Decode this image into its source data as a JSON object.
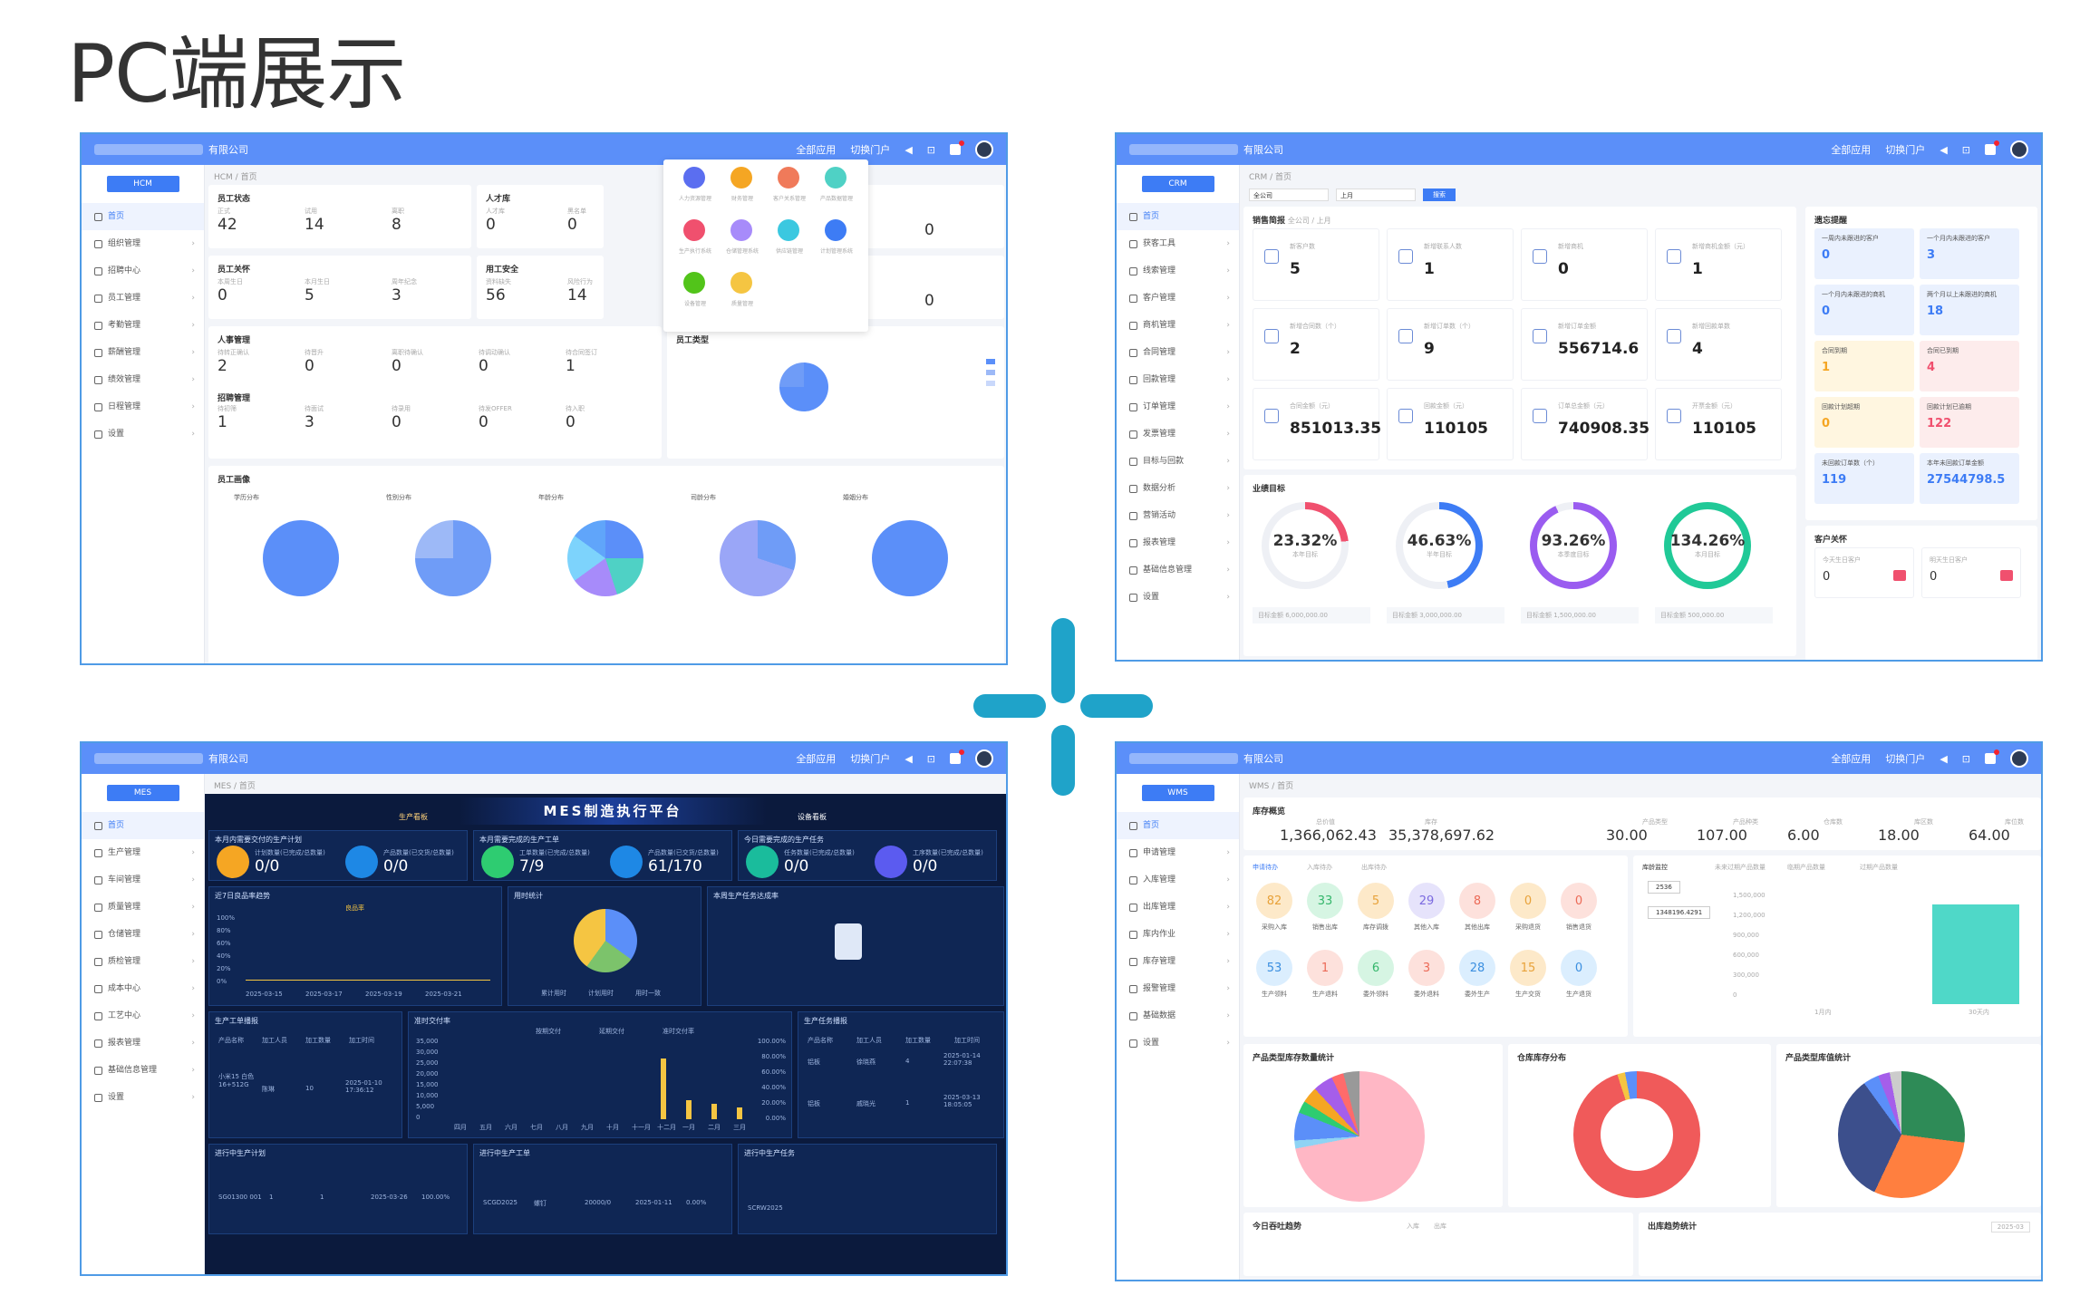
{
  "page_title": "PC端展示",
  "common": {
    "company_suffix_a": "有限公司",
    "company_suffix_b": "有限公司",
    "all_apps": "全部应用",
    "switch_portal": "切换门户",
    "home": "首页"
  },
  "hcm": {
    "module": "HCM",
    "breadcrumb": "HCM / 首页",
    "sidebar": [
      "首页",
      "组织管理",
      "招聘中心",
      "员工管理",
      "考勤管理",
      "薪酬管理",
      "绩效管理",
      "日程管理",
      "设置"
    ],
    "employee_status": {
      "title": "员工状态",
      "items": [
        {
          "label": "正式",
          "value": "42"
        },
        {
          "label": "试用",
          "value": "14"
        },
        {
          "label": "离职",
          "value": "8"
        }
      ]
    },
    "talent_pool": {
      "title": "人才库",
      "items": [
        {
          "label": "人才库",
          "value": "0"
        },
        {
          "label": "黑名单",
          "value": "0"
        }
      ]
    },
    "care": {
      "title": "员工关怀",
      "items": [
        {
          "label": "本周生日",
          "value": "0"
        },
        {
          "label": "本月生日",
          "value": "5"
        },
        {
          "label": "周年纪念",
          "value": "3"
        }
      ]
    },
    "safety": {
      "title": "用工安全",
      "items": [
        {
          "label": "资料缺失",
          "value": "56"
        },
        {
          "label": "风险行为",
          "value": "14"
        }
      ]
    },
    "hr": {
      "title": "人事管理",
      "items": [
        {
          "label": "待转正确认",
          "value": "2"
        },
        {
          "label": "待晋升",
          "value": "0"
        },
        {
          "label": "离职待确认",
          "value": "0"
        },
        {
          "label": "待调动确认",
          "value": "0"
        },
        {
          "label": "待合同签订",
          "value": "1"
        }
      ]
    },
    "recruit": {
      "title": "招聘管理",
      "items": [
        {
          "label": "待初筛",
          "value": "1"
        },
        {
          "label": "待面试",
          "value": "3"
        },
        {
          "label": "待录用",
          "value": "0"
        },
        {
          "label": "待发OFFER",
          "value": "0"
        },
        {
          "label": "待入职",
          "value": "0"
        }
      ]
    },
    "right_values": [
      "0",
      "0"
    ],
    "emp_type": "员工类型",
    "portrait": "员工画像",
    "portrait_charts": [
      "学历分布",
      "性别分布",
      "年龄分布",
      "司龄分布",
      "婚姻分布"
    ],
    "apps": [
      "人力资源管理",
      "财务管理",
      "客户关系管理",
      "产品数据管理",
      "生产执行系统",
      "仓储管理系统",
      "供应链管理",
      "计划管理系统",
      "设备管理",
      "质量管理"
    ]
  },
  "crm": {
    "module": "CRM",
    "breadcrumb": "CRM / 首页",
    "sidebar": [
      "首页",
      "获客工具",
      "线索管理",
      "客户管理",
      "商机管理",
      "合同管理",
      "回款管理",
      "订单管理",
      "发票管理",
      "目标与回款",
      "数据分析",
      "营销活动",
      "报表管理",
      "基础信息管理",
      "设置"
    ],
    "filters": {
      "scope": "全公司",
      "period": "上月",
      "search": "搜索"
    },
    "brief_title": "销售简报",
    "brief_sub": "全公司 / 上月",
    "stats": [
      {
        "label": "新客户数",
        "value": "5"
      },
      {
        "label": "新增联系人数",
        "value": "1"
      },
      {
        "label": "新增商机",
        "value": "0"
      },
      {
        "label": "新增商机金额（元）",
        "value": "1"
      },
      {
        "label": "新增合同数（个）",
        "value": "2"
      },
      {
        "label": "新增订单数（个）",
        "value": "9"
      },
      {
        "label": "新增订单金额",
        "value": "556714.6"
      },
      {
        "label": "新增回款单数",
        "value": "4"
      },
      {
        "label": "合同金额（元）",
        "value": "851013.35"
      },
      {
        "label": "回款金额（元）",
        "value": "110105"
      },
      {
        "label": "订单总金额（元）",
        "value": "740908.35"
      },
      {
        "label": "开票金额（元）",
        "value": "110105"
      }
    ],
    "alerts_title": "遗忘提醒",
    "alerts": [
      {
        "label": "一周内未跟进的客户",
        "value": "0"
      },
      {
        "label": "一个月内未跟进的客户",
        "value": "3"
      },
      {
        "label": "一个月内未跟进的商机",
        "value": "0"
      },
      {
        "label": "两个月以上未跟进的商机",
        "value": "18"
      },
      {
        "label": "合同到期",
        "value": "1"
      },
      {
        "label": "合同已到期",
        "value": "4"
      },
      {
        "label": "回款计划超期",
        "value": "0"
      },
      {
        "label": "回款计划已逾期",
        "value": "122"
      },
      {
        "label": "未回款订单数（个）",
        "value": "119"
      },
      {
        "label": "本年未回款订单金额",
        "value": "27544798.5"
      }
    ],
    "target_title": "业绩目标",
    "targets": [
      {
        "pct": "23.32%",
        "label": "本年目标",
        "color": "#f0506e",
        "frac": 0.2332
      },
      {
        "pct": "46.63%",
        "label": "半年目标",
        "color": "#3d7cf5",
        "frac": 0.4663
      },
      {
        "pct": "93.26%",
        "label": "本季度目标",
        "color": "#9a5cf0",
        "frac": 0.9326
      },
      {
        "pct": "134.26%",
        "label": "本月目标",
        "color": "#20c997",
        "frac": 1.0
      }
    ],
    "target_amounts": [
      "目标金额 6,000,000.00",
      "目标金额 3,000,000.00",
      "目标金额 1,500,000.00",
      "目标金额 500,000.00"
    ],
    "birthday_title": "客户关怀",
    "birthday": [
      {
        "label": "今天生日客户",
        "value": "0"
      },
      {
        "label": "明天生日客户",
        "value": "0"
      }
    ]
  },
  "mes": {
    "module": "MES",
    "breadcrumb": "MES / 首页",
    "sidebar": [
      "首页",
      "生产管理",
      "车间管理",
      "质量管理",
      "仓储管理",
      "质检管理",
      "成本中心",
      "工艺中心",
      "报表管理",
      "基础信息管理",
      "设置"
    ],
    "platform_title": "MES制造执行平台",
    "tab_left": "生产看板",
    "tab_right": "设备看板",
    "section1": [
      "本月内需要交付的生产计划",
      "本月需要完成的生产工单",
      "今日需要完成的生产任务"
    ],
    "stats": [
      {
        "label": "计划数量(已完成/总数量)",
        "value": "0/0",
        "color": "#f5a623"
      },
      {
        "label": "产品数量(已交货/总数量)",
        "value": "0/0",
        "color": "#1e88e5"
      },
      {
        "label": "工单数量(已完成/总数量)",
        "value": "7/9",
        "color": "#2ecc71"
      },
      {
        "label": "产品数量(已交货/总数量)",
        "value": "61/170",
        "color": "#1e88e5"
      },
      {
        "label": "任务数量(已完成/总数量)",
        "value": "0/0",
        "color": "#1abc9c"
      },
      {
        "label": "工序数量(已完成/总数量)",
        "value": "0/0",
        "color": "#5b5bf0"
      }
    ],
    "section2": [
      "近7日良品率趋势",
      "用时统计",
      "本周生产任务达成率"
    ],
    "section3": [
      "生产工单播报",
      "准时交付率",
      "生产任务播报"
    ],
    "section4": [
      "进行中生产计划",
      "进行中生产工单",
      "进行中生产任务"
    ],
    "yticks": [
      "100%",
      "80%",
      "60%",
      "40%",
      "20%",
      "0%"
    ],
    "xdates": [
      "2025-03-15",
      "2025-03-17",
      "2025-03-19",
      "2025-03-21"
    ],
    "legend": "良品率",
    "pie_legend": [
      "累计用时",
      "计划用时",
      "用时一致"
    ],
    "order_cols": [
      "产品名称",
      "加工人员",
      "加工数量",
      "加工时间"
    ],
    "order_row": {
      "name": "小米15 白色 16+512G",
      "worker": "陈琳",
      "qty": "10",
      "time": "2025-01-10 17:36:12"
    },
    "task_rows": [
      {
        "name": "铝板",
        "worker": "徐晓燕",
        "qty": "4",
        "time": "2025-01-14 22:07:38"
      },
      {
        "name": "铝板",
        "worker": "戚晓光",
        "qty": "1",
        "time": "2025-03-13 18:05:05"
      }
    ],
    "plan_row": {
      "code": "SG01300 001",
      "a": "1",
      "b": "1",
      "date": "2025-03-26",
      "rate": "100.00%"
    },
    "wo_row": {
      "code": "SCGD2025",
      "name": "螺钉",
      "qty": "20000/0",
      "date": "2025-01-11",
      "rate": "0.00%"
    },
    "task_code": "SCRW2025",
    "bar_legend": [
      "按期交付",
      "延期交付",
      "准时交付率"
    ],
    "months": [
      "四月",
      "五月",
      "六月",
      "七月",
      "八月",
      "九月",
      "十月",
      "十一月",
      "十二月",
      "一月",
      "二月",
      "三月"
    ],
    "bar_y": [
      "35,000",
      "30,000",
      "25,000",
      "20,000",
      "15,000",
      "10,000",
      "5,000",
      "0"
    ],
    "bar_y2": [
      "100.00%",
      "80.00%",
      "60.00%",
      "40.00%",
      "20.00%",
      "0.00%"
    ]
  },
  "wms": {
    "module": "WMS",
    "breadcrumb": "WMS / 首页",
    "sidebar": [
      "首页",
      "申请管理",
      "入库管理",
      "出库管理",
      "库内作业",
      "库存管理",
      "报警管理",
      "基础数据",
      "设置"
    ],
    "overview_title": "库存概览",
    "overview": [
      {
        "label": "总价值",
        "value": "1,366,062.43"
      },
      {
        "label": "库存",
        "value": "35,378,697.62"
      },
      {
        "label": "产品类型",
        "value": "30.00"
      },
      {
        "label": "产品种类",
        "value": "107.00"
      },
      {
        "label": "仓库数",
        "value": "6.00"
      },
      {
        "label": "库区数",
        "value": "18.00"
      },
      {
        "label": "库位数",
        "value": "64.00"
      }
    ],
    "todo_tabs": [
      "申请待办",
      "入库待办",
      "出库待办"
    ],
    "bubbles_row1": [
      {
        "v": "82",
        "l": "采购入库",
        "c": "#fde9c9",
        "t": "#e8a23a"
      },
      {
        "v": "33",
        "l": "销售出库",
        "c": "#d6f5e3",
        "t": "#34b66b"
      },
      {
        "v": "5",
        "l": "库存调拨",
        "c": "#fde9c9",
        "t": "#e8a23a"
      },
      {
        "v": "29",
        "l": "其他入库",
        "c": "#e6e3fb",
        "t": "#7b6ae0"
      },
      {
        "v": "8",
        "l": "其他出库",
        "c": "#fde1dc",
        "t": "#ec6a57"
      },
      {
        "v": "0",
        "l": "采购退货",
        "c": "#fde9c9",
        "t": "#e8a23a"
      },
      {
        "v": "0",
        "l": "销售退货",
        "c": "#fde1dc",
        "t": "#ec6a57"
      }
    ],
    "bubbles_row2": [
      {
        "v": "53",
        "l": "生产领料",
        "c": "#dbeefe",
        "t": "#3b8fe0"
      },
      {
        "v": "1",
        "l": "生产退料",
        "c": "#fde1dc",
        "t": "#ec6a57"
      },
      {
        "v": "6",
        "l": "委外领料",
        "c": "#d6f5e3",
        "t": "#34b66b"
      },
      {
        "v": "3",
        "l": "委外退料",
        "c": "#fde1dc",
        "t": "#ec6a57"
      },
      {
        "v": "28",
        "l": "委外生产",
        "c": "#dbeefe",
        "t": "#3b8fe0"
      },
      {
        "v": "15",
        "l": "生产交货",
        "c": "#fde9c9",
        "t": "#e8a23a"
      },
      {
        "v": "0",
        "l": "生产退货",
        "c": "#dbeefe",
        "t": "#3b8fe0"
      }
    ],
    "monitor_tabs": [
      "库龄监控",
      "未来过期产品数量",
      "临期产品数量",
      "过期产品数量"
    ],
    "monitor_values": [
      "2536",
      "1348196.4291"
    ],
    "monitor_y": [
      "1,500,000",
      "1,200,000",
      "900,000",
      "600,000",
      "300,000",
      "0"
    ],
    "monitor_x": [
      "1月内",
      "30天内"
    ],
    "chart_titles": [
      "产品类型库存数量统计",
      "仓库库存分布",
      "产品类型库值统计"
    ],
    "bottom_titles": [
      "今日吞吐趋势",
      "出库趋势统计"
    ],
    "bottom_right": "2025-03",
    "throughput_legend": [
      "入库",
      "出库"
    ]
  }
}
